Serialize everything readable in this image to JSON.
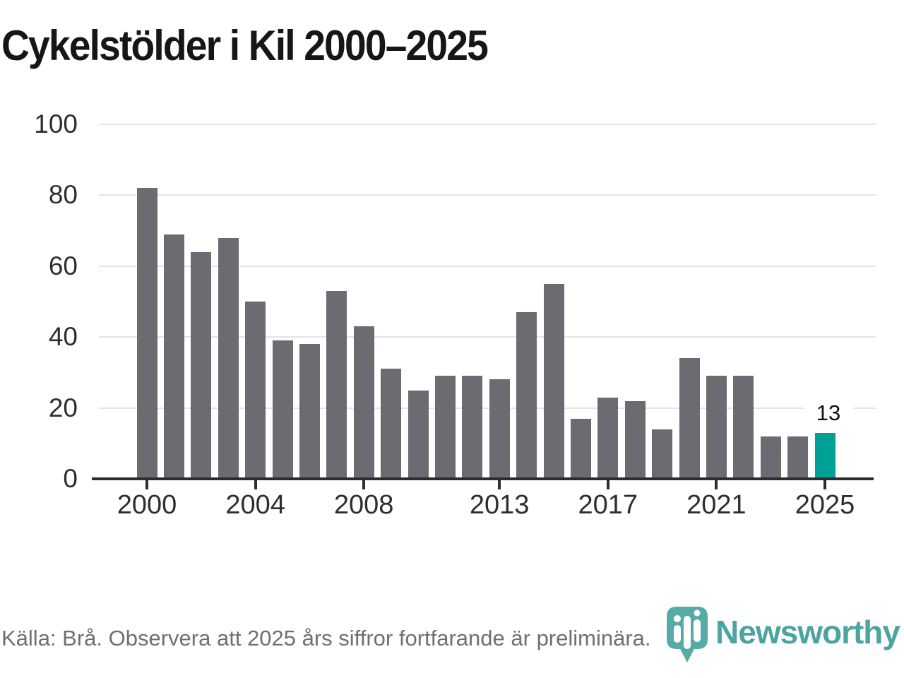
{
  "header": {
    "title": "Cykelstölder i Kil 2000–2025"
  },
  "chart_data": {
    "type": "bar",
    "title": "Cykelstölder i Kil 2000–2025",
    "categories": [
      2000,
      2001,
      2002,
      2003,
      2004,
      2005,
      2006,
      2007,
      2008,
      2009,
      2010,
      2011,
      2012,
      2013,
      2014,
      2015,
      2016,
      2017,
      2018,
      2019,
      2020,
      2021,
      2022,
      2023,
      2024,
      2025
    ],
    "values": [
      82,
      69,
      64,
      68,
      50,
      39,
      38,
      53,
      43,
      31,
      25,
      29,
      29,
      28,
      47,
      55,
      17,
      23,
      22,
      14,
      34,
      29,
      29,
      12,
      12,
      13
    ],
    "xlabel": "",
    "ylabel": "",
    "ylim": [
      0,
      100
    ],
    "yticks": [
      0,
      20,
      40,
      60,
      80,
      100
    ],
    "xtick_labels": [
      "2000",
      "2004",
      "2008",
      "2013",
      "2017",
      "2021",
      "2025"
    ],
    "grid": true,
    "legend": false,
    "highlight": {
      "category": 2025,
      "value": 13,
      "data_label": "13"
    },
    "colors": {
      "bar": "#6b6b71",
      "highlight_bar": "#00a096",
      "gridline": "#e4e4e6",
      "axis": "#2d2d30",
      "tick_label": "#2e2e31",
      "title": "#161616"
    }
  },
  "footer": {
    "source_note": "Källa: Brå. Observera att 2025 års siffror fortfarande är preliminära."
  },
  "branding": {
    "logo_text": "Newsworthy",
    "logo_mark": "newsworthy-pin-barchart-icon",
    "logo_color": "#3f9e9a",
    "logo_mark_color": "#4ba5a1"
  }
}
